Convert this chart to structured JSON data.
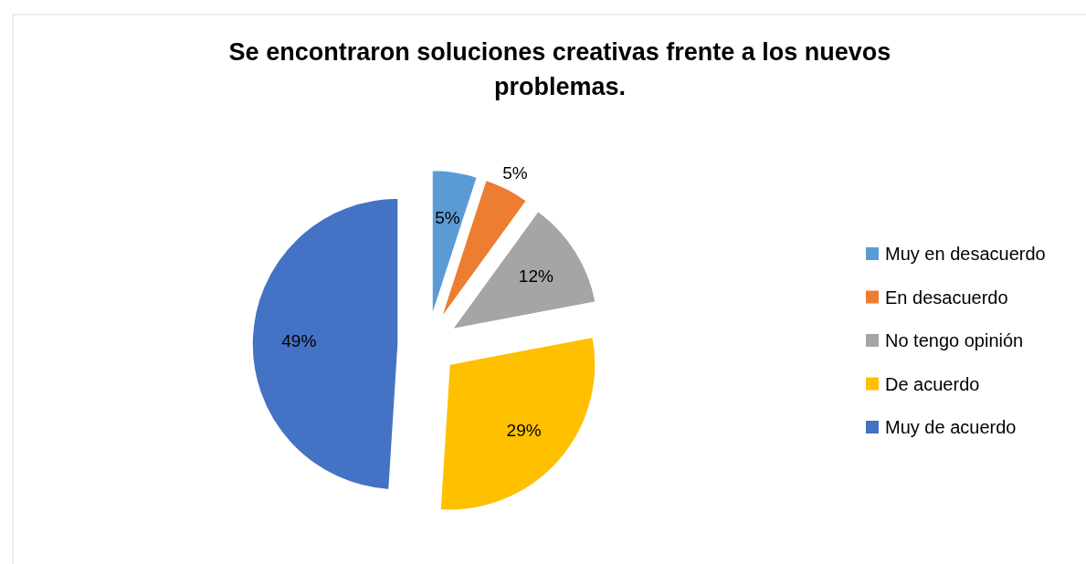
{
  "chart_data": {
    "type": "pie",
    "title": "Se encontraron soluciones creativas frente a los nuevos problemas.",
    "categories": [
      "Muy en desacuerdo",
      "En desacuerdo",
      "No tengo opinión",
      "De acuerdo",
      "Muy de acuerdo"
    ],
    "values": [
      5,
      5,
      12,
      29,
      49
    ],
    "colors": [
      "#5b9bd5",
      "#ed7d31",
      "#a5a5a5",
      "#ffc000",
      "#4472c4"
    ],
    "value_labels": [
      "5%",
      "5%",
      "12%",
      "29%",
      "49%"
    ],
    "legend": "right"
  }
}
